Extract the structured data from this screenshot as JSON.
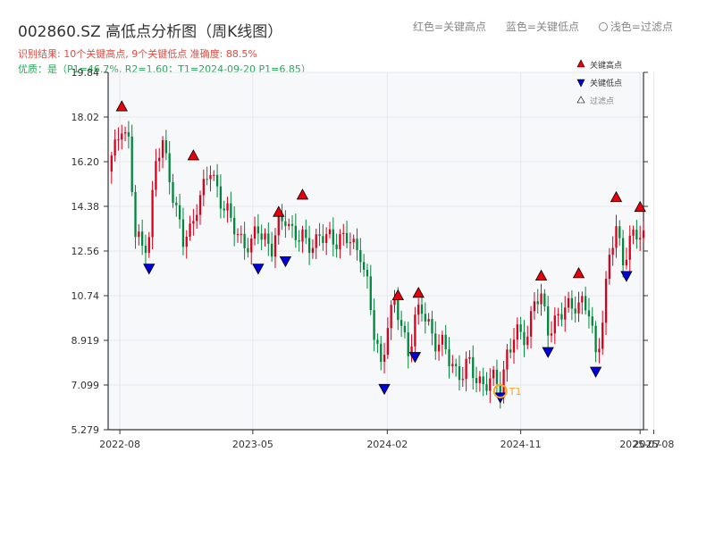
{
  "header": {
    "title": "002860.SZ 高低点分析图（周K线图）",
    "result_text": "识别结果: 10个关键高点, 9个关键低点   准确度: 88.5%",
    "quality_text": "优质：是（P1=46.7%, R2=1.60；T1=2024-09-20 P1=6.85）"
  },
  "top_legend": {
    "red_label": "红色=关键高点",
    "blue_label": "蓝色=关键低点",
    "ring_label": "浅色=过滤点"
  },
  "colors": {
    "up": "#d9001b",
    "down": "#00873c",
    "high_marker": "#e8000b",
    "low_marker": "#0000d8",
    "t1_ring": "#f5a623",
    "plot_bg": "#f7f8fa"
  },
  "chart_data": {
    "type": "candlestick",
    "title": "002860.SZ 高低点分析图（周K线图）",
    "xlabel": "",
    "ylabel": "",
    "ylim": [
      5.279,
      19.84
    ],
    "xlim": [
      "2022-07-08",
      "2025-07-11"
    ],
    "y_ticks": [
      "19.84",
      "18.02",
      "16.20",
      "14.38",
      "12.56",
      "10.74",
      "8.919",
      "7.099",
      "5.279"
    ],
    "x_ticks": [
      {
        "date": "2022-08-01",
        "label": "2022-08"
      },
      {
        "date": "2023-05-01",
        "label": "2023-05"
      },
      {
        "date": "2024-02-01",
        "label": "2024-02"
      },
      {
        "date": "2024-11-01",
        "label": "2024-11"
      },
      {
        "date": "2025-07-04",
        "label": "2025-07"
      },
      {
        "date": "2025-08-01",
        "label": "2025-08"
      }
    ],
    "grid": true,
    "legend_position": "top-right",
    "legend": [
      {
        "symbol": "triangle-up",
        "label": "关键高点"
      },
      {
        "symbol": "triangle-down",
        "label": "关键低点"
      },
      {
        "symbol": "triangle-hollow",
        "label": "过滤点"
      }
    ],
    "close_path": [
      [
        "2022-07-08",
        15.8
      ],
      [
        "2022-07-22",
        16.6
      ],
      [
        "2022-08-05",
        17.9
      ],
      [
        "2022-08-19",
        17.0
      ],
      [
        "2022-09-02",
        13.1
      ],
      [
        "2022-09-16",
        12.7
      ],
      [
        "2022-09-30",
        13.4
      ],
      [
        "2022-10-14",
        16.1
      ],
      [
        "2022-10-28",
        16.8
      ],
      [
        "2022-11-11",
        15.8
      ],
      [
        "2022-11-25",
        14.2
      ],
      [
        "2022-12-09",
        12.8
      ],
      [
        "2022-12-23",
        13.4
      ],
      [
        "2023-01-06",
        14.6
      ],
      [
        "2023-01-20",
        15.0
      ],
      [
        "2023-02-03",
        15.8
      ],
      [
        "2023-02-17",
        15.2
      ],
      [
        "2023-03-03",
        14.4
      ],
      [
        "2023-03-17",
        13.6
      ],
      [
        "2023-03-31",
        13.3
      ],
      [
        "2023-04-14",
        13.0
      ],
      [
        "2023-04-28",
        12.7
      ],
      [
        "2023-05-12",
        13.4
      ],
      [
        "2023-05-26",
        13.2
      ],
      [
        "2023-06-09",
        12.7
      ],
      [
        "2023-06-23",
        13.4
      ],
      [
        "2023-07-07",
        14.0
      ],
      [
        "2023-07-21",
        13.5
      ],
      [
        "2023-08-04",
        13.0
      ],
      [
        "2023-08-18",
        12.8
      ],
      [
        "2023-09-01",
        13.0
      ],
      [
        "2023-09-15",
        13.2
      ],
      [
        "2023-09-29",
        12.9
      ],
      [
        "2023-10-13",
        13.1
      ],
      [
        "2023-10-27",
        13.2
      ],
      [
        "2023-11-10",
        13.0
      ],
      [
        "2023-11-24",
        12.6
      ],
      [
        "2023-12-08",
        12.7
      ],
      [
        "2023-12-22",
        11.2
      ],
      [
        "2024-01-05",
        9.0
      ],
      [
        "2024-01-19",
        7.9
      ],
      [
        "2024-02-02",
        9.8
      ],
      [
        "2024-02-16",
        10.3
      ],
      [
        "2024-03-01",
        9.4
      ],
      [
        "2024-03-15",
        8.6
      ],
      [
        "2024-03-29",
        9.8
      ],
      [
        "2024-04-12",
        10.0
      ],
      [
        "2024-04-26",
        9.6
      ],
      [
        "2024-05-10",
        9.0
      ],
      [
        "2024-05-24",
        8.6
      ],
      [
        "2024-06-07",
        8.1
      ],
      [
        "2024-06-21",
        7.8
      ],
      [
        "2024-07-05",
        7.6
      ],
      [
        "2024-07-19",
        7.8
      ],
      [
        "2024-08-02",
        7.4
      ],
      [
        "2024-08-16",
        7.3
      ],
      [
        "2024-08-30",
        7.1
      ],
      [
        "2024-09-13",
        7.2
      ],
      [
        "2024-09-20",
        7.0
      ],
      [
        "2024-10-04",
        8.5
      ],
      [
        "2024-10-18",
        8.9
      ],
      [
        "2024-11-01",
        9.1
      ],
      [
        "2024-11-15",
        9.3
      ],
      [
        "2024-11-29",
        10.6
      ],
      [
        "2024-12-13",
        10.4
      ],
      [
        "2024-12-27",
        9.5
      ],
      [
        "2025-01-10",
        9.8
      ],
      [
        "2025-01-24",
        9.9
      ],
      [
        "2025-02-07",
        10.2
      ],
      [
        "2025-02-21",
        10.6
      ],
      [
        "2025-03-07",
        10.4
      ],
      [
        "2025-03-21",
        9.9
      ],
      [
        "2025-04-04",
        8.4
      ],
      [
        "2025-04-18",
        9.9
      ],
      [
        "2025-05-02",
        12.2
      ],
      [
        "2025-05-16",
        13.4
      ],
      [
        "2025-05-30",
        12.4
      ],
      [
        "2025-06-13",
        12.9
      ],
      [
        "2025-06-27",
        13.1
      ],
      [
        "2025-07-11",
        13.2
      ]
    ],
    "key_highs": [
      {
        "date": "2022-08-05",
        "price": 18.2
      },
      {
        "date": "2022-12-30",
        "price": 16.2
      },
      {
        "date": "2023-06-23",
        "price": 13.9
      },
      {
        "date": "2023-08-11",
        "price": 14.6
      },
      {
        "date": "2024-02-23",
        "price": 10.5
      },
      {
        "date": "2024-04-05",
        "price": 10.6
      },
      {
        "date": "2024-12-13",
        "price": 11.3
      },
      {
        "date": "2025-02-28",
        "price": 11.4
      },
      {
        "date": "2025-05-16",
        "price": 14.5
      },
      {
        "date": "2025-07-04",
        "price": 14.1
      }
    ],
    "key_lows": [
      {
        "date": "2022-09-30",
        "price": 12.1
      },
      {
        "date": "2023-05-12",
        "price": 12.1
      },
      {
        "date": "2023-07-07",
        "price": 12.4
      },
      {
        "date": "2024-01-26",
        "price": 7.2
      },
      {
        "date": "2024-03-29",
        "price": 8.5
      },
      {
        "date": "2024-09-20",
        "price": 6.85
      },
      {
        "date": "2024-12-27",
        "price": 8.7
      },
      {
        "date": "2025-04-04",
        "price": 7.9
      },
      {
        "date": "2025-06-06",
        "price": 11.8
      }
    ],
    "t1_point": {
      "date": "2024-09-20",
      "price": 6.85,
      "label": "T1"
    }
  }
}
